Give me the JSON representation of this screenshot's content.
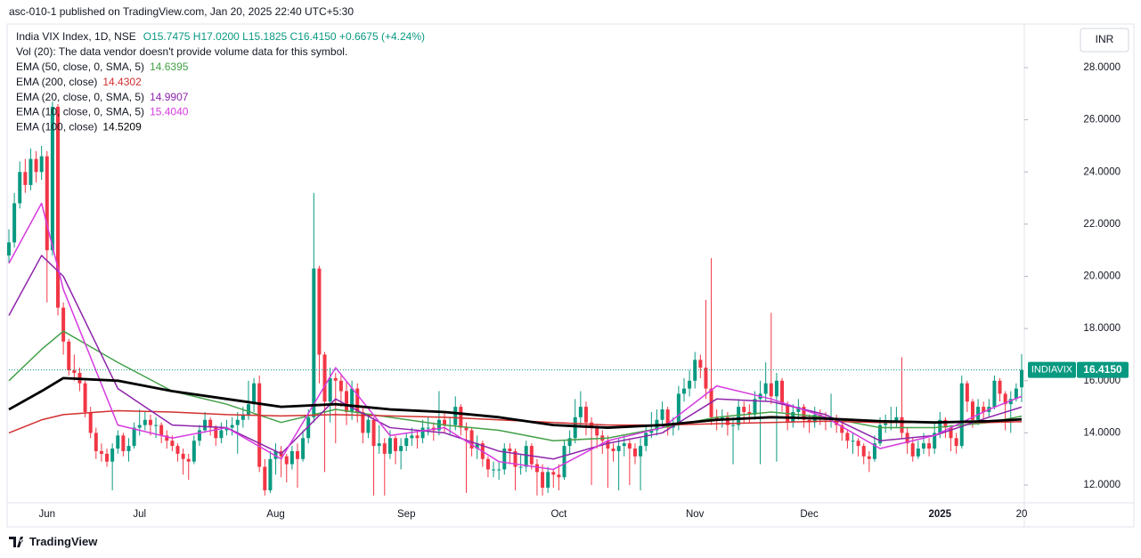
{
  "chart_data": {
    "type": "candlestick",
    "published": "asc-010-1 published on TradingView.com, Jan 20, 2025 22:40 UTC+5:30",
    "symbol": "India VIX Index, 1D, NSE",
    "quote": "O15.7475 H17.0200 L15.1825 C16.4150 +0.6675 (+4.24%)",
    "volume_note": "Vol (20): The data vendor doesn't provide volume data for this symbol.",
    "currency": "INR",
    "price_tag_name": "INDIAVIX",
    "last_price_label": "16.4150",
    "footer": "TradingView",
    "up_color": "#089981",
    "down_color": "#f23645",
    "grid": false,
    "ylim": [
      11.32,
      29.67
    ],
    "yticks": [
      {
        "value": 12,
        "label": "12.0000"
      },
      {
        "value": 14,
        "label": "14.0000"
      },
      {
        "value": 16,
        "label": "16.0000"
      },
      {
        "value": 18,
        "label": "18.0000"
      },
      {
        "value": 20,
        "label": "20.0000"
      },
      {
        "value": 22,
        "label": "22.0000"
      },
      {
        "value": 24,
        "label": "24.0000"
      },
      {
        "value": 26,
        "label": "26.0000"
      },
      {
        "value": 28,
        "label": "28.0000"
      }
    ],
    "categories": [
      null,
      null,
      null,
      null,
      null,
      null,
      null,
      "Jun",
      null,
      null,
      null,
      null,
      null,
      null,
      null,
      null,
      null,
      null,
      null,
      null,
      null,
      null,
      null,
      null,
      "Jul",
      null,
      null,
      null,
      null,
      null,
      null,
      null,
      null,
      null,
      null,
      null,
      null,
      null,
      null,
      null,
      null,
      null,
      null,
      null,
      null,
      null,
      null,
      null,
      null,
      "Aug",
      null,
      null,
      null,
      null,
      null,
      null,
      null,
      null,
      null,
      null,
      null,
      null,
      null,
      null,
      null,
      null,
      null,
      null,
      null,
      null,
      null,
      null,
      null,
      "Sep",
      null,
      null,
      null,
      null,
      null,
      null,
      null,
      null,
      null,
      null,
      null,
      null,
      null,
      null,
      null,
      null,
      null,
      null,
      null,
      null,
      null,
      null,
      null,
      null,
      null,
      null,
      null,
      "Oct",
      null,
      null,
      null,
      null,
      null,
      null,
      null,
      null,
      null,
      null,
      null,
      null,
      null,
      null,
      null,
      null,
      null,
      null,
      null,
      null,
      null,
      null,
      null,
      null,
      "Nov",
      null,
      null,
      null,
      null,
      null,
      null,
      null,
      null,
      null,
      null,
      null,
      null,
      null,
      null,
      null,
      null,
      null,
      null,
      null,
      null,
      "Dec",
      null,
      null,
      null,
      null,
      null,
      null,
      null,
      null,
      null,
      null,
      null,
      null,
      null,
      null,
      null,
      null,
      null,
      null,
      null,
      null,
      null,
      null,
      null,
      "2025",
      null,
      null,
      null,
      null,
      null,
      null,
      null,
      null,
      null,
      null,
      null,
      null,
      null,
      null,
      "20"
    ],
    "open": [
      20.8,
      21.3,
      22.8,
      24.0,
      23.5,
      24.5,
      24.0,
      24.6,
      21.0,
      26.5,
      18.8,
      17.5,
      16.4,
      16.3,
      15.9,
      14.8,
      14.0,
      13.3,
      13.2,
      12.9,
      13.4,
      13.9,
      13.3,
      13.5,
      14.2,
      14.3,
      14.5,
      14.3,
      14.3,
      13.9,
      13.7,
      13.5,
      13.2,
      13.0,
      12.9,
      13.7,
      14.1,
      14.5,
      14.2,
      13.8,
      14.1,
      14.2,
      14.3,
      14.5,
      14.7,
      15.1,
      15.9,
      12.7,
      11.8,
      13.0,
      13.3,
      13.1,
      12.8,
      13.3,
      13.0,
      13.8,
      14.6,
      20.3,
      17.0,
      15.2,
      16.1,
      16.0,
      15.6,
      14.8,
      15.7,
      14.8,
      14.0,
      14.5,
      13.5,
      13.6,
      13.2,
      13.8,
      13.3,
      13.5,
      13.8,
      13.9,
      13.8,
      14.2,
      14.2,
      14.1,
      14.5,
      14.3,
      14.3,
      15.0,
      14.2,
      14.1,
      13.4,
      13.6,
      13.0,
      12.6,
      12.6,
      12.6,
      13.4,
      13.3,
      12.7,
      12.7,
      13.5,
      12.8,
      12.5,
      11.9,
      12.5,
      12.4,
      12.3,
      13.5,
      13.8,
      14.6,
      15.0,
      14.4,
      14.2,
      13.9,
      13.7,
      13.4,
      13.3,
      13.5,
      13.6,
      13.4,
      13.1,
      13.5,
      14.0,
      14.1,
      14.5,
      14.9,
      14.2,
      14.3,
      15.5,
      15.7,
      16.0,
      16.8,
      16.5,
      15.7,
      14.6,
      14.5,
      14.6,
      14.3,
      14.3,
      15.0,
      14.8,
      14.7,
      15.3,
      15.5,
      15.9,
      15.4,
      16.0,
      15.1,
      14.4,
      14.8,
      15.0,
      14.5,
      14.4,
      14.7,
      14.6,
      14.5,
      14.5,
      14.3,
      14.0,
      13.7,
      13.7,
      13.5,
      13.1,
      13.0,
      13.6,
      14.3,
      14.4,
      14.4,
      14.6,
      14.0,
      13.6,
      13.1,
      13.4,
      13.6,
      13.4,
      14.0,
      14.5,
      14.2,
      13.8,
      13.5,
      15.9,
      15.2,
      14.5,
      15.0,
      14.8,
      15.0,
      16.0,
      15.5,
      15.1,
      15.3,
      15.7475
    ],
    "high": [
      21.8,
      23.2,
      24.4,
      24.5,
      24.9,
      24.8,
      25.0,
      24.8,
      26.7,
      26.6,
      19.0,
      17.6,
      17.0,
      16.5,
      16.0,
      15.0,
      14.2,
      13.6,
      13.4,
      13.6,
      14.1,
      14.0,
      13.8,
      14.4,
      14.9,
      14.8,
      14.7,
      14.6,
      14.4,
      14.1,
      13.9,
      13.6,
      13.4,
      13.2,
      13.9,
      14.3,
      14.8,
      14.6,
      14.3,
      14.4,
      14.5,
      14.6,
      14.8,
      15.0,
      16.0,
      16.1,
      16.2,
      13.0,
      13.3,
      13.6,
      13.5,
      13.2,
      13.5,
      13.6,
      14.1,
      14.9,
      23.2,
      20.4,
      17.1,
      16.5,
      16.3,
      16.2,
      16.0,
      16.0,
      15.9,
      15.0,
      14.7,
      14.6,
      14.3,
      13.8,
      14.1,
      13.9,
      13.8,
      14.0,
      14.2,
      14.1,
      14.5,
      14.6,
      14.4,
      15.6,
      14.8,
      14.6,
      15.4,
      15.1,
      14.4,
      14.2,
      13.9,
      13.7,
      13.1,
      12.9,
      12.9,
      13.6,
      13.6,
      13.4,
      13.2,
      13.7,
      13.6,
      13.0,
      12.8,
      12.7,
      12.6,
      12.8,
      13.7,
      14.1,
      15.3,
      15.6,
      15.2,
      14.6,
      14.3,
      14.1,
      13.9,
      13.6,
      13.8,
      13.9,
      13.8,
      13.6,
      13.8,
      14.3,
      14.8,
      14.9,
      15.2,
      15.0,
      14.6,
      15.8,
      16.1,
      16.4,
      17.1,
      17.0,
      19.1,
      20.7,
      14.9,
      14.9,
      14.8,
      14.6,
      15.3,
      15.2,
      15.1,
      15.6,
      16.0,
      16.7,
      18.6,
      16.3,
      16.1,
      15.2,
      15.1,
      15.3,
      15.1,
      14.7,
      15.0,
      14.9,
      14.8,
      15.5,
      14.7,
      14.4,
      14.1,
      14.0,
      13.8,
      13.6,
      13.3,
      13.9,
      14.6,
      14.7,
      15.0,
      15.0,
      16.9,
      14.2,
      13.8,
      13.7,
      14.0,
      13.8,
      14.4,
      14.8,
      14.6,
      14.3,
      14.0,
      16.2,
      16.0,
      15.3,
      15.3,
      15.2,
      15.3,
      16.2,
      16.1,
      15.6,
      15.6,
      15.9,
      17.02
    ],
    "low": [
      20.5,
      21.1,
      22.6,
      23.2,
      23.3,
      23.6,
      23.7,
      19.0,
      20.8,
      18.5,
      17.0,
      16.2,
      16.0,
      15.6,
      14.6,
      13.8,
      13.0,
      12.9,
      12.7,
      11.8,
      13.2,
      13.1,
      12.9,
      13.4,
      13.9,
      14.1,
      13.9,
      13.8,
      13.6,
      13.4,
      13.3,
      12.9,
      12.4,
      12.2,
      12.8,
      13.5,
      14.0,
      13.9,
      13.5,
      13.6,
      13.9,
      13.9,
      13.2,
      14.2,
      14.5,
      14.8,
      12.5,
      11.6,
      11.7,
      12.4,
      12.3,
      12.1,
      12.6,
      11.9,
      12.9,
      13.6,
      14.4,
      15.9,
      12.5,
      14.4,
      13.6,
      15.0,
      14.3,
      14.5,
      14.4,
      13.6,
      13.8,
      11.6,
      13.2,
      11.6,
      13.0,
      12.8,
      12.6,
      13.3,
      13.5,
      13.4,
      13.6,
      13.9,
      13.7,
      13.9,
      14.0,
      13.9,
      14.1,
      13.9,
      11.7,
      13.1,
      13.0,
      12.7,
      12.3,
      12.3,
      12.2,
      12.4,
      12.8,
      11.8,
      12.4,
      12.5,
      12.6,
      11.6,
      11.6,
      11.7,
      11.9,
      11.8,
      12.2,
      13.2,
      13.6,
      14.3,
      13.9,
      12.0,
      13.4,
      13.2,
      11.9,
      12.9,
      11.8,
      13.1,
      12.0,
      12.8,
      11.8,
      13.3,
      13.8,
      13.9,
      14.2,
      13.9,
      13.9,
      14.1,
      15.2,
      15.4,
      15.7,
      16.1,
      15.3,
      14.3,
      14.1,
      14.2,
      13.9,
      12.8,
      14.1,
      14.4,
      14.4,
      14.5,
      12.8,
      15.2,
      15.1,
      12.9,
      14.8,
      14.1,
      14.2,
      14.5,
      14.2,
      14.0,
      14.2,
      14.3,
      14.1,
      14.2,
      14.0,
      13.7,
      13.4,
      13.2,
      13.1,
      12.8,
      12.5,
      12.9,
      13.5,
      14.0,
      14.1,
      14.2,
      13.8,
      13.2,
      12.9,
      13.0,
      13.2,
      13.1,
      13.2,
      13.8,
      13.8,
      13.3,
      13.2,
      13.4,
      14.8,
      14.2,
      14.3,
      14.5,
      14.6,
      14.9,
      15.2,
      14.1,
      14.0,
      15.2,
      15.1825
    ],
    "close": [
      21.3,
      22.8,
      24.0,
      23.5,
      24.5,
      24.0,
      24.6,
      21.0,
      26.5,
      18.8,
      17.5,
      16.4,
      16.3,
      15.9,
      14.8,
      14.0,
      13.3,
      13.2,
      12.9,
      13.4,
      13.9,
      13.3,
      13.5,
      14.2,
      14.3,
      14.5,
      14.3,
      14.3,
      13.9,
      13.7,
      13.5,
      13.2,
      13.0,
      12.9,
      13.7,
      14.1,
      14.5,
      14.2,
      13.8,
      14.1,
      14.2,
      14.3,
      14.5,
      14.7,
      15.1,
      15.9,
      12.7,
      11.8,
      13.0,
      13.3,
      13.1,
      12.8,
      13.3,
      13.0,
      13.8,
      14.6,
      20.3,
      17.0,
      15.2,
      16.1,
      16.0,
      15.6,
      14.8,
      15.7,
      14.8,
      14.0,
      14.5,
      13.5,
      13.6,
      13.2,
      13.8,
      13.3,
      13.5,
      13.8,
      13.9,
      13.8,
      14.2,
      14.2,
      14.1,
      14.5,
      14.3,
      14.3,
      15.0,
      14.2,
      14.1,
      13.4,
      13.6,
      13.0,
      12.6,
      12.6,
      12.6,
      13.4,
      13.3,
      12.7,
      12.7,
      13.5,
      12.8,
      12.5,
      11.9,
      12.5,
      12.4,
      12.3,
      13.5,
      13.8,
      14.6,
      15.0,
      14.4,
      14.2,
      13.9,
      13.7,
      13.4,
      13.3,
      13.5,
      13.6,
      13.4,
      13.1,
      13.5,
      14.0,
      14.1,
      14.5,
      14.9,
      14.2,
      14.3,
      15.5,
      15.7,
      16.0,
      16.8,
      16.5,
      15.7,
      14.6,
      14.5,
      14.6,
      14.3,
      14.3,
      15.0,
      14.8,
      14.7,
      15.3,
      15.5,
      15.9,
      15.4,
      16.0,
      15.1,
      14.4,
      14.8,
      15.0,
      14.5,
      14.4,
      14.7,
      14.6,
      14.5,
      14.5,
      14.3,
      14.0,
      13.7,
      13.7,
      13.5,
      13.1,
      13.0,
      13.6,
      14.3,
      14.4,
      14.4,
      14.6,
      14.0,
      13.6,
      13.1,
      13.4,
      13.6,
      13.4,
      14.0,
      14.5,
      14.2,
      13.8,
      13.5,
      15.9,
      15.2,
      14.5,
      15.0,
      14.8,
      15.0,
      16.0,
      15.5,
      15.1,
      15.3,
      15.7,
      16.415
    ],
    "ema": {
      "x": [
        0,
        6,
        10,
        20,
        30,
        40,
        50,
        60,
        70,
        80,
        90,
        100,
        110,
        120,
        130,
        140,
        150,
        160,
        170,
        180,
        186
      ],
      "series": [
        {
          "name": "EMA (50, close, 0, SMA, 5)",
          "last": "14.6395",
          "color": "#43a047",
          "line_width": 1.5,
          "values": [
            16.0,
            17.2,
            17.9,
            16.7,
            15.6,
            15.1,
            14.4,
            14.9,
            14.6,
            14.3,
            14.1,
            13.7,
            13.8,
            14.2,
            14.6,
            14.8,
            14.6,
            14.2,
            14.2,
            14.4,
            14.64
          ]
        },
        {
          "name": "EMA (200, close)",
          "last": "14.4302",
          "color": "#d32f2f",
          "line_width": 1.5,
          "values": [
            14.0,
            14.5,
            14.7,
            14.85,
            14.8,
            14.7,
            14.65,
            14.7,
            14.65,
            14.6,
            14.5,
            14.4,
            14.3,
            14.3,
            14.35,
            14.4,
            14.45,
            14.4,
            14.4,
            14.4,
            14.43
          ]
        },
        {
          "name": "EMA (20, close, 0, SMA, 5)",
          "last": "14.9907",
          "color": "#8e24aa",
          "line_width": 1.5,
          "values": [
            18.5,
            20.8,
            20.0,
            15.7,
            14.3,
            14.2,
            13.2,
            15.3,
            14.2,
            14.0,
            13.3,
            13.0,
            13.6,
            14.0,
            15.3,
            15.2,
            14.7,
            13.7,
            13.9,
            14.6,
            14.99
          ]
        },
        {
          "name": "EMA (10, close, 0, SMA, 5)",
          "last": "15.4040",
          "color": "#d63adf",
          "line_width": 1.5,
          "values": [
            20.5,
            22.8,
            19.5,
            14.3,
            13.8,
            14.2,
            13.0,
            16.5,
            13.9,
            14.2,
            12.9,
            12.6,
            13.7,
            14.2,
            15.8,
            15.3,
            14.6,
            13.4,
            13.9,
            14.9,
            15.4
          ]
        },
        {
          "name": "EMA (100, close)",
          "last": "14.5209",
          "color": "#000000",
          "line_width": 2.8,
          "values": [
            14.9,
            15.6,
            16.1,
            16.0,
            15.6,
            15.3,
            15.0,
            15.1,
            14.9,
            14.8,
            14.6,
            14.3,
            14.2,
            14.3,
            14.5,
            14.6,
            14.55,
            14.45,
            14.4,
            14.45,
            14.52
          ]
        }
      ]
    }
  }
}
